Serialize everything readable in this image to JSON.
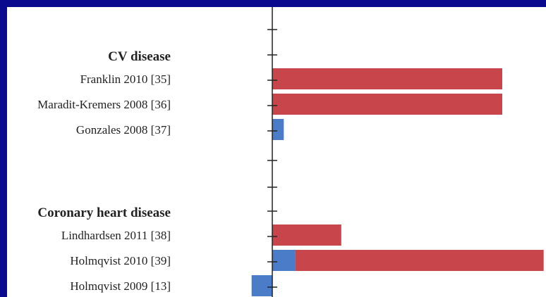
{
  "colors": {
    "page_background": "#0a0a8f",
    "panel_background": "#ffffff",
    "increase_bar": "#c8464b",
    "decrease_bar": "#4a7cc8",
    "axis": "#222222"
  },
  "chart_data": {
    "type": "bar",
    "orientation": "horizontal",
    "title": "",
    "xlabel": "",
    "ylabel": "",
    "axis_value": 0,
    "note": "",
    "groups": [
      {
        "label": "CV disease",
        "rows": [
          {
            "label": "Franklin 2010 [35]",
            "segments": [
              {
                "color": "increase_bar",
                "from": 0,
                "to": 100
              }
            ]
          },
          {
            "label": "Maradit-Kremers 2008 [36]",
            "segments": [
              {
                "color": "increase_bar",
                "from": 0,
                "to": 100
              }
            ]
          },
          {
            "label": "Gonzales 2008 [37]",
            "segments": [
              {
                "color": "decrease_bar",
                "from": 0,
                "to": 5
              }
            ]
          }
        ]
      },
      {
        "label": "Coronary heart disease",
        "rows": [
          {
            "label": "Lindhardsen 2011 [38]",
            "segments": [
              {
                "color": "increase_bar",
                "from": 0,
                "to": 30
              }
            ]
          },
          {
            "label": "Holmqvist 2010 [39]",
            "segments": [
              {
                "color": "decrease_bar",
                "from": 0,
                "to": 10
              },
              {
                "color": "increase_bar",
                "from": 10,
                "to": 118
              }
            ]
          },
          {
            "label": "Holmqvist 2009 [13]",
            "segments": [
              {
                "color": "decrease_bar",
                "from": -9,
                "to": 0
              }
            ]
          }
        ]
      }
    ]
  }
}
